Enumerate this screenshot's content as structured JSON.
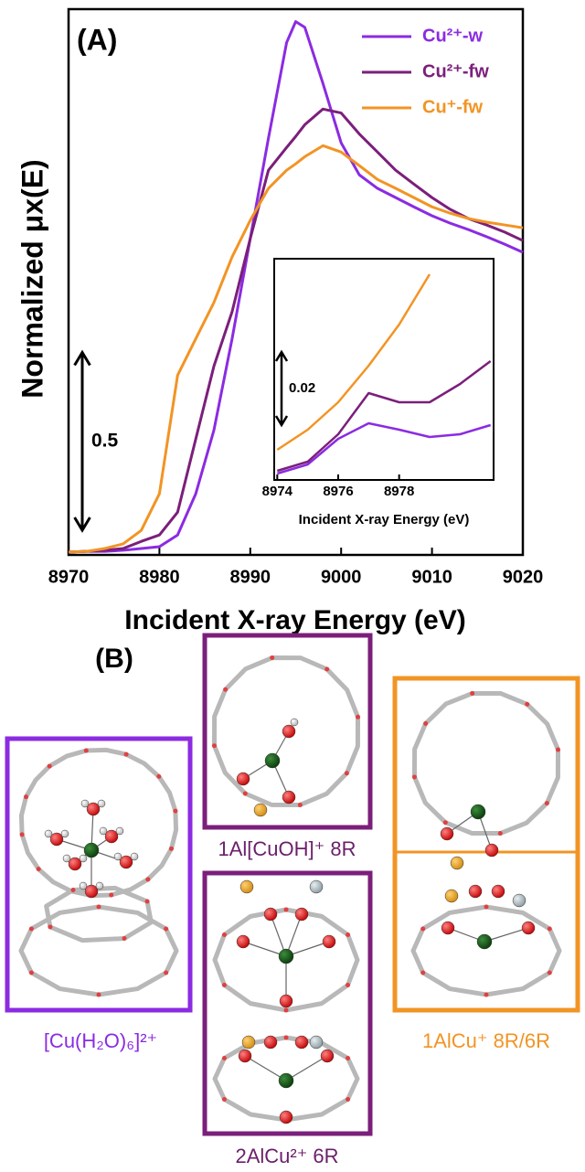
{
  "chart_data": [
    {
      "type": "line",
      "panel_label": "(A)",
      "xlabel": "Incident X-ray Energy (eV)",
      "ylabel": "Normalized μx(E)",
      "x": [
        8970,
        8972,
        8974,
        8976,
        8978,
        8980,
        8982,
        8984,
        8986,
        8988,
        8990,
        8992,
        8994,
        8995,
        8996,
        8998,
        9000,
        9002,
        9004,
        9006,
        9008,
        9010,
        9012,
        9014,
        9016,
        9018,
        9020
      ],
      "series": [
        {
          "name": "Cu²⁺-w",
          "color": "#8b2be2",
          "values": [
            0.003,
            0.005,
            0.005,
            0.008,
            0.013,
            0.018,
            0.051,
            0.167,
            0.346,
            0.603,
            0.885,
            1.167,
            1.436,
            1.495,
            1.479,
            1.321,
            1.154,
            1.064,
            1.026,
            1.0,
            0.974,
            0.949,
            0.928,
            0.91,
            0.89,
            0.869,
            0.846
          ]
        },
        {
          "name": "Cu²⁺-fw",
          "color": "#7b1f7b",
          "values": [
            0.003,
            0.005,
            0.008,
            0.013,
            0.033,
            0.051,
            0.115,
            0.321,
            0.526,
            0.679,
            0.885,
            1.077,
            1.141,
            1.172,
            1.205,
            1.249,
            1.238,
            1.179,
            1.128,
            1.077,
            1.038,
            1.0,
            0.967,
            0.941,
            0.923,
            0.903,
            0.879
          ]
        },
        {
          "name": "Cu⁺-fw",
          "color": "#f29424",
          "values": [
            0.003,
            0.005,
            0.013,
            0.026,
            0.064,
            0.167,
            0.5,
            0.603,
            0.705,
            0.833,
            0.936,
            1.026,
            1.077,
            1.095,
            1.115,
            1.146,
            1.128,
            1.09,
            1.051,
            1.026,
            1.0,
            0.974,
            0.956,
            0.941,
            0.931,
            0.923,
            0.915
          ]
        }
      ],
      "xlim": [
        8970,
        9020
      ],
      "xticks": [
        8970,
        8980,
        8990,
        9000,
        9010,
        9020
      ],
      "ylim": [
        -0.005,
        1.53
      ],
      "scale_bar": 0.5,
      "legend": "upper right"
    },
    {
      "type": "line",
      "xlabel": "Incident X-ray Energy (eV)",
      "x": [
        8974,
        8975,
        8976,
        8977,
        8978,
        8979,
        8980,
        8981
      ],
      "series": [
        {
          "name": "Cu²⁺-w",
          "color": "#8b2be2",
          "values": [
            0.00175,
            0.00425,
            0.01125,
            0.0155,
            0.01375,
            0.01175,
            0.0125,
            0.015
          ]
        },
        {
          "name": "Cu²⁺-fw",
          "color": "#7b1f7b",
          "values": [
            0.0025,
            0.005,
            0.0125,
            0.02375,
            0.02125,
            0.02125,
            0.02625,
            0.0325
          ]
        },
        {
          "name": "Cu⁺-fw",
          "color": "#f29424",
          "values": [
            0.00825,
            0.01375,
            0.02125,
            0.03125,
            0.0425,
            0.05625,
            null,
            null
          ]
        }
      ],
      "xlim": [
        8973.9,
        8981.1
      ],
      "xticks": [
        8974,
        8976,
        8978
      ],
      "ylim": [
        0,
        0.0605
      ],
      "scale_bar": 0.02
    }
  ],
  "structures": {
    "panel_label": "(B)",
    "labels": [
      "[Cu(H₂O)₆]²⁺",
      "1Al[CuOH]⁺ 8R",
      "2AlCu²⁺ 6R",
      "1AlCu⁺ 8R/6R"
    ]
  }
}
